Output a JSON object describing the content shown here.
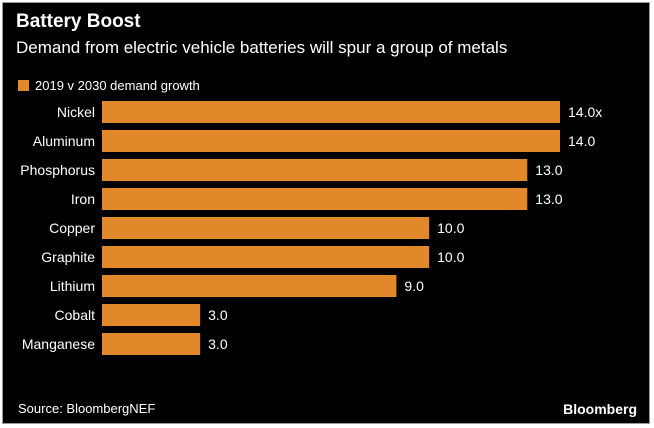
{
  "title": "Battery Boost",
  "subtitle": "Demand from electric vehicle batteries will spur a group of metals",
  "source": "Source: BloombergNEF",
  "logo": "Bloomberg",
  "colors": {
    "bar": "#e0882a",
    "background": "#000000",
    "text": "#ffffff"
  },
  "chart_data": {
    "type": "bar",
    "orientation": "horizontal",
    "categories": [
      "Nickel",
      "Aluminum",
      "Phosphorus",
      "Iron",
      "Copper",
      "Graphite",
      "Lithium",
      "Cobalt",
      "Manganese"
    ],
    "series": [
      {
        "name": "2019 v 2030 demand growth",
        "values": [
          14.0,
          14.0,
          13.0,
          13.0,
          10.0,
          10.0,
          9.0,
          3.0,
          3.0
        ],
        "labels": [
          "14.0x",
          "14.0",
          "13.0",
          "13.0",
          "10.0",
          "10.0",
          "9.0",
          "3.0",
          "3.0"
        ]
      }
    ],
    "xlim": [
      0,
      14
    ],
    "grid": false,
    "legend": "top-left"
  }
}
